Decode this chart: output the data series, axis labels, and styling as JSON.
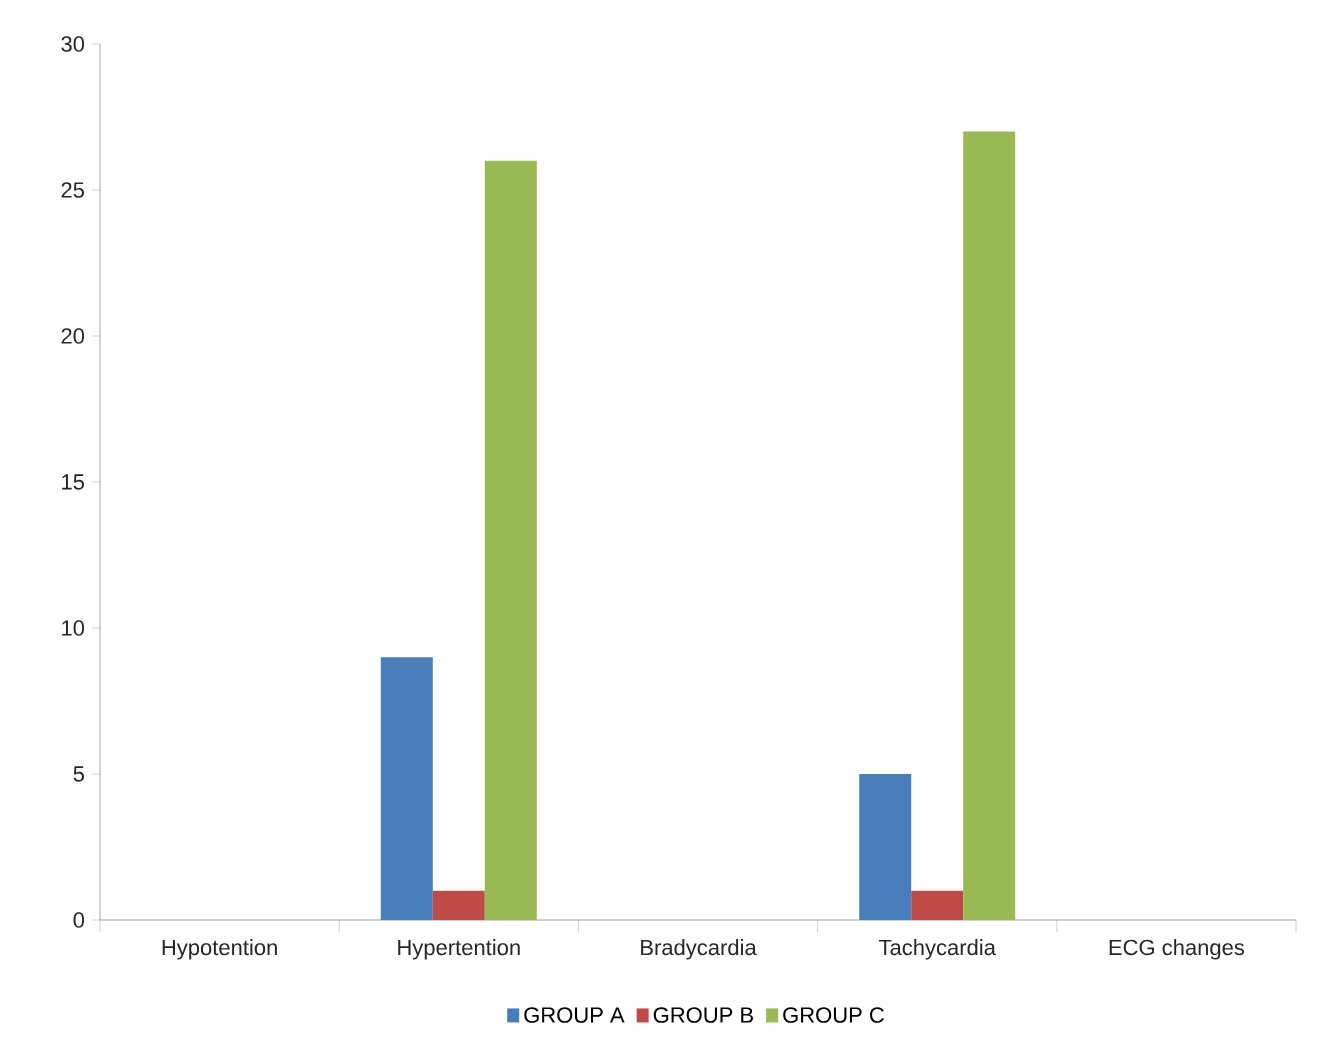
{
  "chart_data": {
    "type": "bar",
    "categories": [
      "Hypotention",
      "Hypertention",
      "Bradycardia",
      "Tachycardia",
      "ECG changes"
    ],
    "series": [
      {
        "name": "GROUP A",
        "color": "#4a7ebb",
        "values": [
          0,
          9,
          0,
          5,
          0
        ]
      },
      {
        "name": "GROUP B",
        "color": "#be4b48",
        "values": [
          0,
          1,
          0,
          1,
          0
        ]
      },
      {
        "name": "GROUP C",
        "color": "#98b954",
        "values": [
          0,
          26,
          0,
          27,
          0
        ]
      }
    ],
    "ylim": [
      0,
      30
    ],
    "yticks": [
      0,
      5,
      10,
      15,
      20,
      25,
      30
    ],
    "grid": false,
    "legend": "bottom"
  }
}
